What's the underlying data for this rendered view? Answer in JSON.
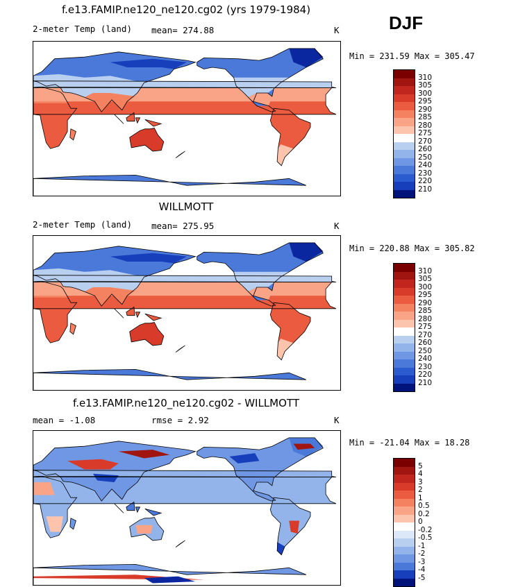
{
  "season": "DJF",
  "colors": {
    "warm": [
      "#ffffff",
      "#fde0d2",
      "#fcc4ad",
      "#f9a486",
      "#f4815f",
      "#ea5b3f",
      "#d93b2a",
      "#c0261d",
      "#a01510",
      "#7a0000"
    ],
    "cool": [
      "#dce8f7",
      "#b9cff0",
      "#93b4ea",
      "#6f97e3",
      "#4b79d9",
      "#2b5ccf",
      "#173fbb",
      "#0a27a0",
      "#00137a"
    ]
  },
  "panels": [
    {
      "title": "f.e13.FAMIP.ne120_ne120.cg02 (yrs 1979-1984)",
      "left_text": "2-meter Temp (land)",
      "stat1": "mean= 274.88",
      "stat2": "",
      "units": "K",
      "minmax": "Min = 231.59 Max = 305.47",
      "colorbar_labels": [
        "310",
        "305",
        "300",
        "295",
        "290",
        "285",
        "280",
        "275",
        "270",
        "260",
        "250",
        "240",
        "230",
        "220",
        "210"
      ],
      "colorbar_colors": [
        "#7a0000",
        "#a01510",
        "#c0261d",
        "#d93b2a",
        "#ea5b3f",
        "#f4815f",
        "#f9a486",
        "#fcc4ad",
        "#ffffff",
        "#b9cff0",
        "#93b4ea",
        "#6f97e3",
        "#4b79d9",
        "#2b5ccf",
        "#173fbb",
        "#00137a"
      ]
    },
    {
      "title": "WILLMOTT",
      "left_text": "2-meter Temp (land)",
      "stat1": "mean= 275.95",
      "stat2": "",
      "units": "K",
      "minmax": "Min = 220.88 Max = 305.82",
      "colorbar_labels": [
        "310",
        "305",
        "300",
        "295",
        "290",
        "285",
        "280",
        "275",
        "270",
        "260",
        "250",
        "240",
        "230",
        "220",
        "210"
      ],
      "colorbar_colors": [
        "#7a0000",
        "#a01510",
        "#c0261d",
        "#d93b2a",
        "#ea5b3f",
        "#f4815f",
        "#f9a486",
        "#fcc4ad",
        "#ffffff",
        "#b9cff0",
        "#93b4ea",
        "#6f97e3",
        "#4b79d9",
        "#2b5ccf",
        "#173fbb",
        "#00137a"
      ]
    },
    {
      "title": "f.e13.FAMIP.ne120_ne120.cg02 - WILLMOTT",
      "left_text": "mean =   -1.08",
      "stat1": "rmse =    2.92",
      "stat2": "",
      "units": "K",
      "minmax": "Min = -21.04 Max =  18.28",
      "colorbar_labels": [
        "5",
        "4",
        "3",
        "2",
        "1",
        "0.5",
        "0.2",
        "0",
        "-0.2",
        "-0.5",
        "-1",
        "-2",
        "-3",
        "-4",
        "-5"
      ],
      "colorbar_colors": [
        "#7a0000",
        "#a01510",
        "#c0261d",
        "#d93b2a",
        "#ea5b3f",
        "#f4815f",
        "#f9a486",
        "#fcc4ad",
        "#ffffff",
        "#dce8f7",
        "#b9cff0",
        "#93b4ea",
        "#6f97e3",
        "#4b79d9",
        "#173fbb",
        "#00137a"
      ]
    }
  ]
}
